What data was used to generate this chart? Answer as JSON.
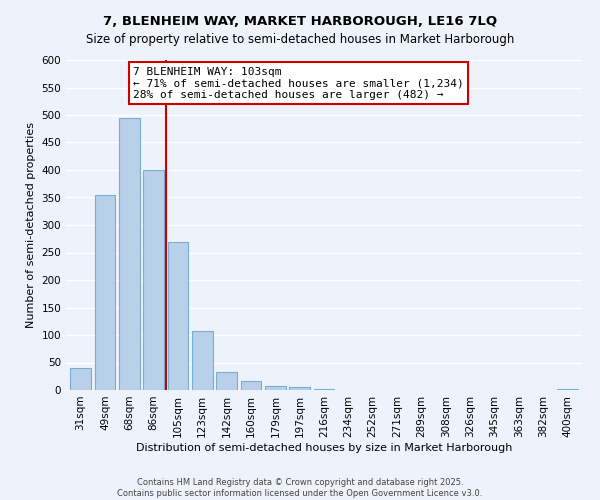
{
  "title": "7, BLENHEIM WAY, MARKET HARBOROUGH, LE16 7LQ",
  "subtitle": "Size of property relative to semi-detached houses in Market Harborough",
  "xlabel": "Distribution of semi-detached houses by size in Market Harborough",
  "ylabel": "Number of semi-detached properties",
  "categories": [
    "31sqm",
    "49sqm",
    "68sqm",
    "86sqm",
    "105sqm",
    "123sqm",
    "142sqm",
    "160sqm",
    "179sqm",
    "197sqm",
    "216sqm",
    "234sqm",
    "252sqm",
    "271sqm",
    "289sqm",
    "308sqm",
    "326sqm",
    "345sqm",
    "363sqm",
    "382sqm",
    "400sqm"
  ],
  "values": [
    40,
    355,
    495,
    400,
    270,
    107,
    32,
    16,
    8,
    5,
    1,
    0,
    0,
    0,
    0,
    0,
    0,
    0,
    0,
    0,
    2
  ],
  "bar_color": "#b8d0ea",
  "bar_edge_color": "#7aadd4",
  "vline_x_index": 3.5,
  "vline_color": "#cc0000",
  "annotation_title": "7 BLENHEIM WAY: 103sqm",
  "annotation_line1": "← 71% of semi-detached houses are smaller (1,234)",
  "annotation_line2": "28% of semi-detached houses are larger (482) →",
  "annotation_box_color": "#cc0000",
  "ylim": [
    0,
    600
  ],
  "yticks": [
    0,
    50,
    100,
    150,
    200,
    250,
    300,
    350,
    400,
    450,
    500,
    550,
    600
  ],
  "footer_line1": "Contains HM Land Registry data © Crown copyright and database right 2025.",
  "footer_line2": "Contains public sector information licensed under the Open Government Licence v3.0.",
  "bg_color": "#eef2fb",
  "grid_color": "#ffffff",
  "title_fontsize": 9.5,
  "subtitle_fontsize": 8.5,
  "xlabel_fontsize": 8.0,
  "ylabel_fontsize": 8.0,
  "tick_fontsize": 7.5,
  "ann_fontsize": 8.0,
  "footer_fontsize": 6.0
}
